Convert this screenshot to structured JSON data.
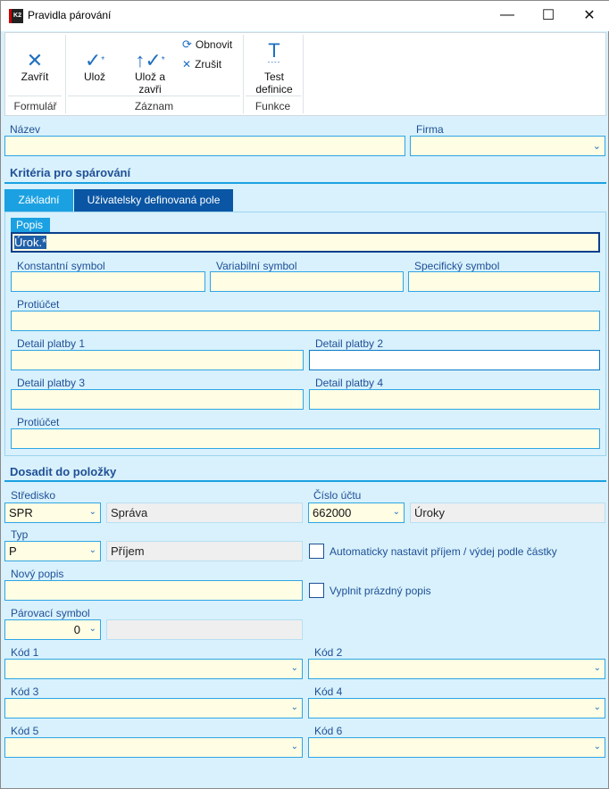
{
  "window": {
    "title": "Pravidla párování",
    "logo": "K2"
  },
  "ribbon": {
    "groups": [
      {
        "label": "Formulář"
      },
      {
        "label": "Záznam"
      },
      {
        "label": "Funkce"
      }
    ],
    "close": "Zavřít",
    "save": "Ulož",
    "save_close": "Ulož a zavři",
    "refresh": "Obnovit",
    "cancel": "Zrušit",
    "test": "Test definice"
  },
  "header": {
    "name_label": "Název",
    "name_value": "",
    "firm_label": "Firma",
    "firm_value": ""
  },
  "criteria": {
    "title": "Kritéria pro spárování",
    "tabs": [
      {
        "label": "Základní",
        "active": true
      },
      {
        "label": "Uživatelsky definovaná pole",
        "active": false
      }
    ],
    "popis_label": "Popis",
    "popis_value": "Úrok.*",
    "ks_label": "Konstantní symbol",
    "vs_label": "Variabilní symbol",
    "ss_label": "Specifický symbol",
    "protiucet_label": "Protiúčet",
    "dp1_label": "Detail platby 1",
    "dp2_label": "Detail platby 2",
    "dp3_label": "Detail platby 3",
    "dp4_label": "Detail platby 4",
    "protiucet2_label": "Protiúčet"
  },
  "assign": {
    "title": "Dosadit do položky",
    "stredisko_label": "Středisko",
    "stredisko_value": "SPR",
    "stredisko_name": "Správa",
    "ucet_label": "Číslo účtu",
    "ucet_value": "662000",
    "ucet_name": "Úroky",
    "typ_label": "Typ",
    "typ_value": "P",
    "typ_name": "Příjem",
    "auto_label": "Automaticky nastavit příjem / výdej podle částky",
    "auto_checked": false,
    "novy_label": "Nový popis",
    "novy_value": "",
    "fill_label": "Vyplnit prázdný popis",
    "fill_checked": false,
    "parovaci_label": "Párovací symbol",
    "parovaci_value": "0",
    "kod1": "Kód 1",
    "kod2": "Kód 2",
    "kod3": "Kód 3",
    "kod4": "Kód 4",
    "kod5": "Kód 5",
    "kod6": "Kód 6"
  },
  "colors": {
    "accent": "#1ba1e2",
    "tab_inactive": "#0a56a4",
    "input_bg": "#fffde3",
    "bg": "#d8f1fc"
  }
}
